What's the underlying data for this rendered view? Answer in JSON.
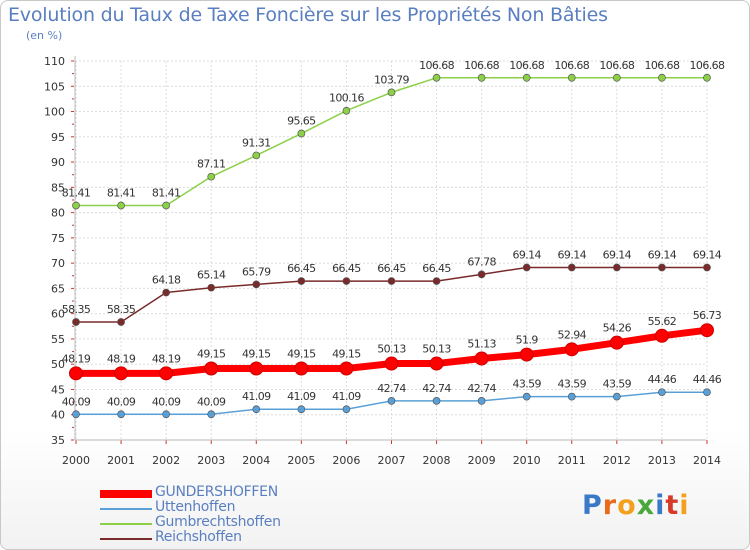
{
  "title": "Evolution du Taux de Taxe Foncière sur les Propriétés Non Bâties",
  "unit_label": "(en %)",
  "logo_text": "Proxiti",
  "chart_data": {
    "type": "line",
    "x": [
      "2000",
      "2001",
      "2002",
      "2003",
      "2004",
      "2005",
      "2006",
      "2007",
      "2008",
      "2009",
      "2010",
      "2011",
      "2012",
      "2013",
      "2014"
    ],
    "ylim": [
      35,
      110
    ],
    "yticks": [
      35,
      40,
      45,
      50,
      55,
      60,
      65,
      70,
      75,
      80,
      85,
      90,
      95,
      100,
      105,
      110
    ],
    "grid": true,
    "legend_position": "bottom-left",
    "series": [
      {
        "name": "GUNDERSHOFFEN",
        "color": "#ff0000",
        "values": [
          48.19,
          48.19,
          48.19,
          49.15,
          49.15,
          49.15,
          49.15,
          50.13,
          50.13,
          51.13,
          51.9,
          52.94,
          54.26,
          55.62,
          56.73
        ],
        "labels": [
          "48.19",
          "48.19",
          "48.19",
          "49.15",
          "49.15",
          "49.15",
          "49.15",
          "50.13",
          "50.13",
          "51.13",
          "51.9",
          "52.94",
          "54.26",
          "55.62",
          "56.73"
        ]
      },
      {
        "name": "Uttenhoffen",
        "color": "#5aa0d8",
        "values": [
          40.09,
          40.09,
          40.09,
          40.09,
          41.09,
          41.09,
          41.09,
          42.74,
          42.74,
          42.74,
          43.59,
          43.59,
          43.59,
          44.46,
          44.46
        ],
        "labels": [
          "40.09",
          "40.09",
          "40.09",
          "40.09",
          "41.09",
          "41.09",
          "41.09",
          "42.74",
          "42.74",
          "42.74",
          "43.59",
          "43.59",
          "43.59",
          "44.46",
          "44.46"
        ]
      },
      {
        "name": "Gumbrechtshoffen",
        "color": "#8cd048",
        "values": [
          81.41,
          81.41,
          81.41,
          87.11,
          91.31,
          95.65,
          100.16,
          103.79,
          106.68,
          106.68,
          106.68,
          106.68,
          106.68,
          106.68,
          106.68
        ],
        "labels": [
          "81.41",
          "81.41",
          "81.41",
          "87.11",
          "91.31",
          "95.65",
          "100.16",
          "103.79",
          "106.68",
          "106.68",
          "106.68",
          "106.68",
          "106.68",
          "106.68",
          "106.68"
        ]
      },
      {
        "name": "Reichshoffen",
        "color": "#7a2a2a",
        "values": [
          58.35,
          58.35,
          64.18,
          65.14,
          65.79,
          66.45,
          66.45,
          66.45,
          66.45,
          67.78,
          69.14,
          69.14,
          69.14,
          69.14,
          69.14
        ],
        "labels": [
          "58.35",
          "58.35",
          "64.18",
          "65.14",
          "65.79",
          "66.45",
          "66.45",
          "66.45",
          "66.45",
          "67.78",
          "69.14",
          "69.14",
          "69.14",
          "69.14",
          "69.14"
        ]
      }
    ]
  }
}
